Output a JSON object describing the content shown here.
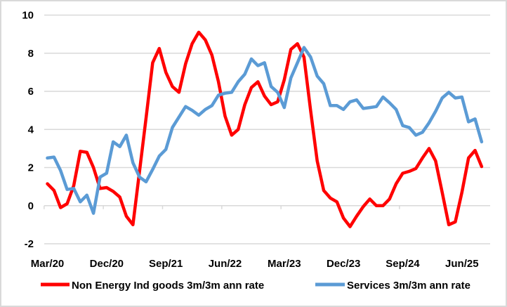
{
  "chart_data": {
    "type": "line",
    "title": "",
    "xlabel": "",
    "ylabel": "",
    "ylim": [
      -2,
      10
    ],
    "yticks": [
      "-2",
      "0",
      "2",
      "4",
      "6",
      "8",
      "10"
    ],
    "ytick_values": [
      -2,
      0,
      2,
      4,
      6,
      8,
      10
    ],
    "grid": "horizontal",
    "legend_position": "bottom",
    "x": [
      "Mar/20",
      "Apr/20",
      "May/20",
      "Jun/20",
      "Jul/20",
      "Aug/20",
      "Sep/20",
      "Oct/20",
      "Nov/20",
      "Dec/20",
      "Jan/21",
      "Feb/21",
      "Mar/21",
      "Apr/21",
      "May/21",
      "Jun/21",
      "Jul/21",
      "Aug/21",
      "Sep/21",
      "Oct/21",
      "Nov/21",
      "Dec/21",
      "Jan/22",
      "Feb/22",
      "Mar/22",
      "Apr/22",
      "May/22",
      "Jun/22",
      "Jul/22",
      "Aug/22",
      "Sep/22",
      "Oct/22",
      "Nov/22",
      "Dec/22",
      "Jan/23",
      "Feb/23",
      "Mar/23",
      "Apr/23",
      "May/23",
      "Jun/23",
      "Jul/23",
      "Aug/23",
      "Sep/23",
      "Oct/23",
      "Nov/23",
      "Dec/23",
      "Jan/24",
      "Feb/24",
      "Mar/24",
      "Apr/24",
      "May/24",
      "Jun/24",
      "Jul/24",
      "Aug/24",
      "Sep/24",
      "Oct/24",
      "Nov/24",
      "Dec/24",
      "Jan/25",
      "Feb/25",
      "Mar/25",
      "Apr/25",
      "May/25",
      "Jun/25",
      "Jul/25",
      "Aug/25",
      "Sep/25"
    ],
    "xtick_labels": [
      "Mar/20",
      "Dec/20",
      "Sep/21",
      "Jun/22",
      "Mar/23",
      "Dec/23",
      "Sep/24",
      "Jun/25"
    ],
    "xtick_interval": 9,
    "series": [
      {
        "name": "Non Energy Ind goods 3m/3m ann rate",
        "color": "#ff0000",
        "values": [
          1.15,
          0.8,
          -0.1,
          0.1,
          1.05,
          2.85,
          2.8,
          2.0,
          0.9,
          0.95,
          0.75,
          0.45,
          -0.55,
          -1.0,
          1.8,
          4.6,
          7.5,
          8.25,
          7.0,
          6.25,
          5.95,
          7.45,
          8.5,
          9.1,
          8.7,
          7.9,
          6.5,
          4.7,
          3.7,
          4.0,
          5.3,
          6.2,
          6.5,
          5.75,
          5.3,
          5.45,
          6.6,
          8.2,
          8.5,
          7.8,
          5.0,
          2.35,
          0.8,
          0.4,
          0.2,
          -0.65,
          -1.1,
          -0.55,
          -0.05,
          0.35,
          0.0,
          0.0,
          0.35,
          1.15,
          1.7,
          1.8,
          1.95,
          2.5,
          3.0,
          2.35,
          0.7,
          -1.0,
          -0.85,
          0.7,
          2.5,
          2.9,
          2.05
        ]
      },
      {
        "name": "Services 3m/3m ann rate",
        "color": "#5b9bd5",
        "values": [
          2.5,
          2.55,
          1.85,
          0.85,
          0.9,
          0.2,
          0.55,
          -0.4,
          1.5,
          1.7,
          3.35,
          3.1,
          3.7,
          2.25,
          1.5,
          1.25,
          1.9,
          2.6,
          2.95,
          4.1,
          4.65,
          5.2,
          5.0,
          4.75,
          5.05,
          5.25,
          5.8,
          5.9,
          5.95,
          6.5,
          6.9,
          7.7,
          7.35,
          7.5,
          6.25,
          5.95,
          5.15,
          6.7,
          7.5,
          8.3,
          7.8,
          6.8,
          6.4,
          5.25,
          5.25,
          5.05,
          5.45,
          5.55,
          5.1,
          5.15,
          5.2,
          5.7,
          5.4,
          5.05,
          4.2,
          4.1,
          3.7,
          3.85,
          4.35,
          4.95,
          5.65,
          5.95,
          5.65,
          5.7,
          4.4,
          4.55,
          3.35
        ]
      }
    ]
  }
}
